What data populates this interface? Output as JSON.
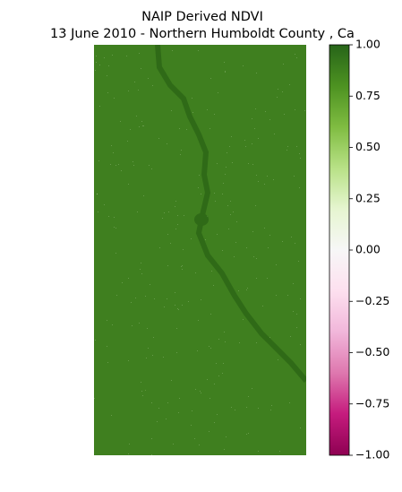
{
  "chart_data": {
    "type": "image",
    "title": "NAIP Derived NDVI",
    "subtitle": "13 June 2010 - Northern Humboldt County , Ca",
    "colorbar": {
      "colors": [
        "#8e0152",
        "#c51b7d",
        "#de77ae",
        "#f1b6da",
        "#fde0ef",
        "#f7f7f7",
        "#e6f5d0",
        "#b8e186",
        "#7fbc41",
        "#4d9221",
        "#276419"
      ],
      "lim": [
        -1,
        1
      ],
      "ticks": [
        {
          "value": -1,
          "label": "−1.00"
        },
        {
          "value": -0.75,
          "label": "−0.75"
        },
        {
          "value": -0.5,
          "label": "−0.50"
        },
        {
          "value": -0.25,
          "label": "−0.25"
        },
        {
          "value": 0,
          "label": "0.00"
        },
        {
          "value": 0.25,
          "label": "0.25"
        },
        {
          "value": 0.5,
          "label": "0.50"
        },
        {
          "value": 0.75,
          "label": "0.75"
        },
        {
          "value": 1,
          "label": "1.00"
        }
      ]
    }
  }
}
